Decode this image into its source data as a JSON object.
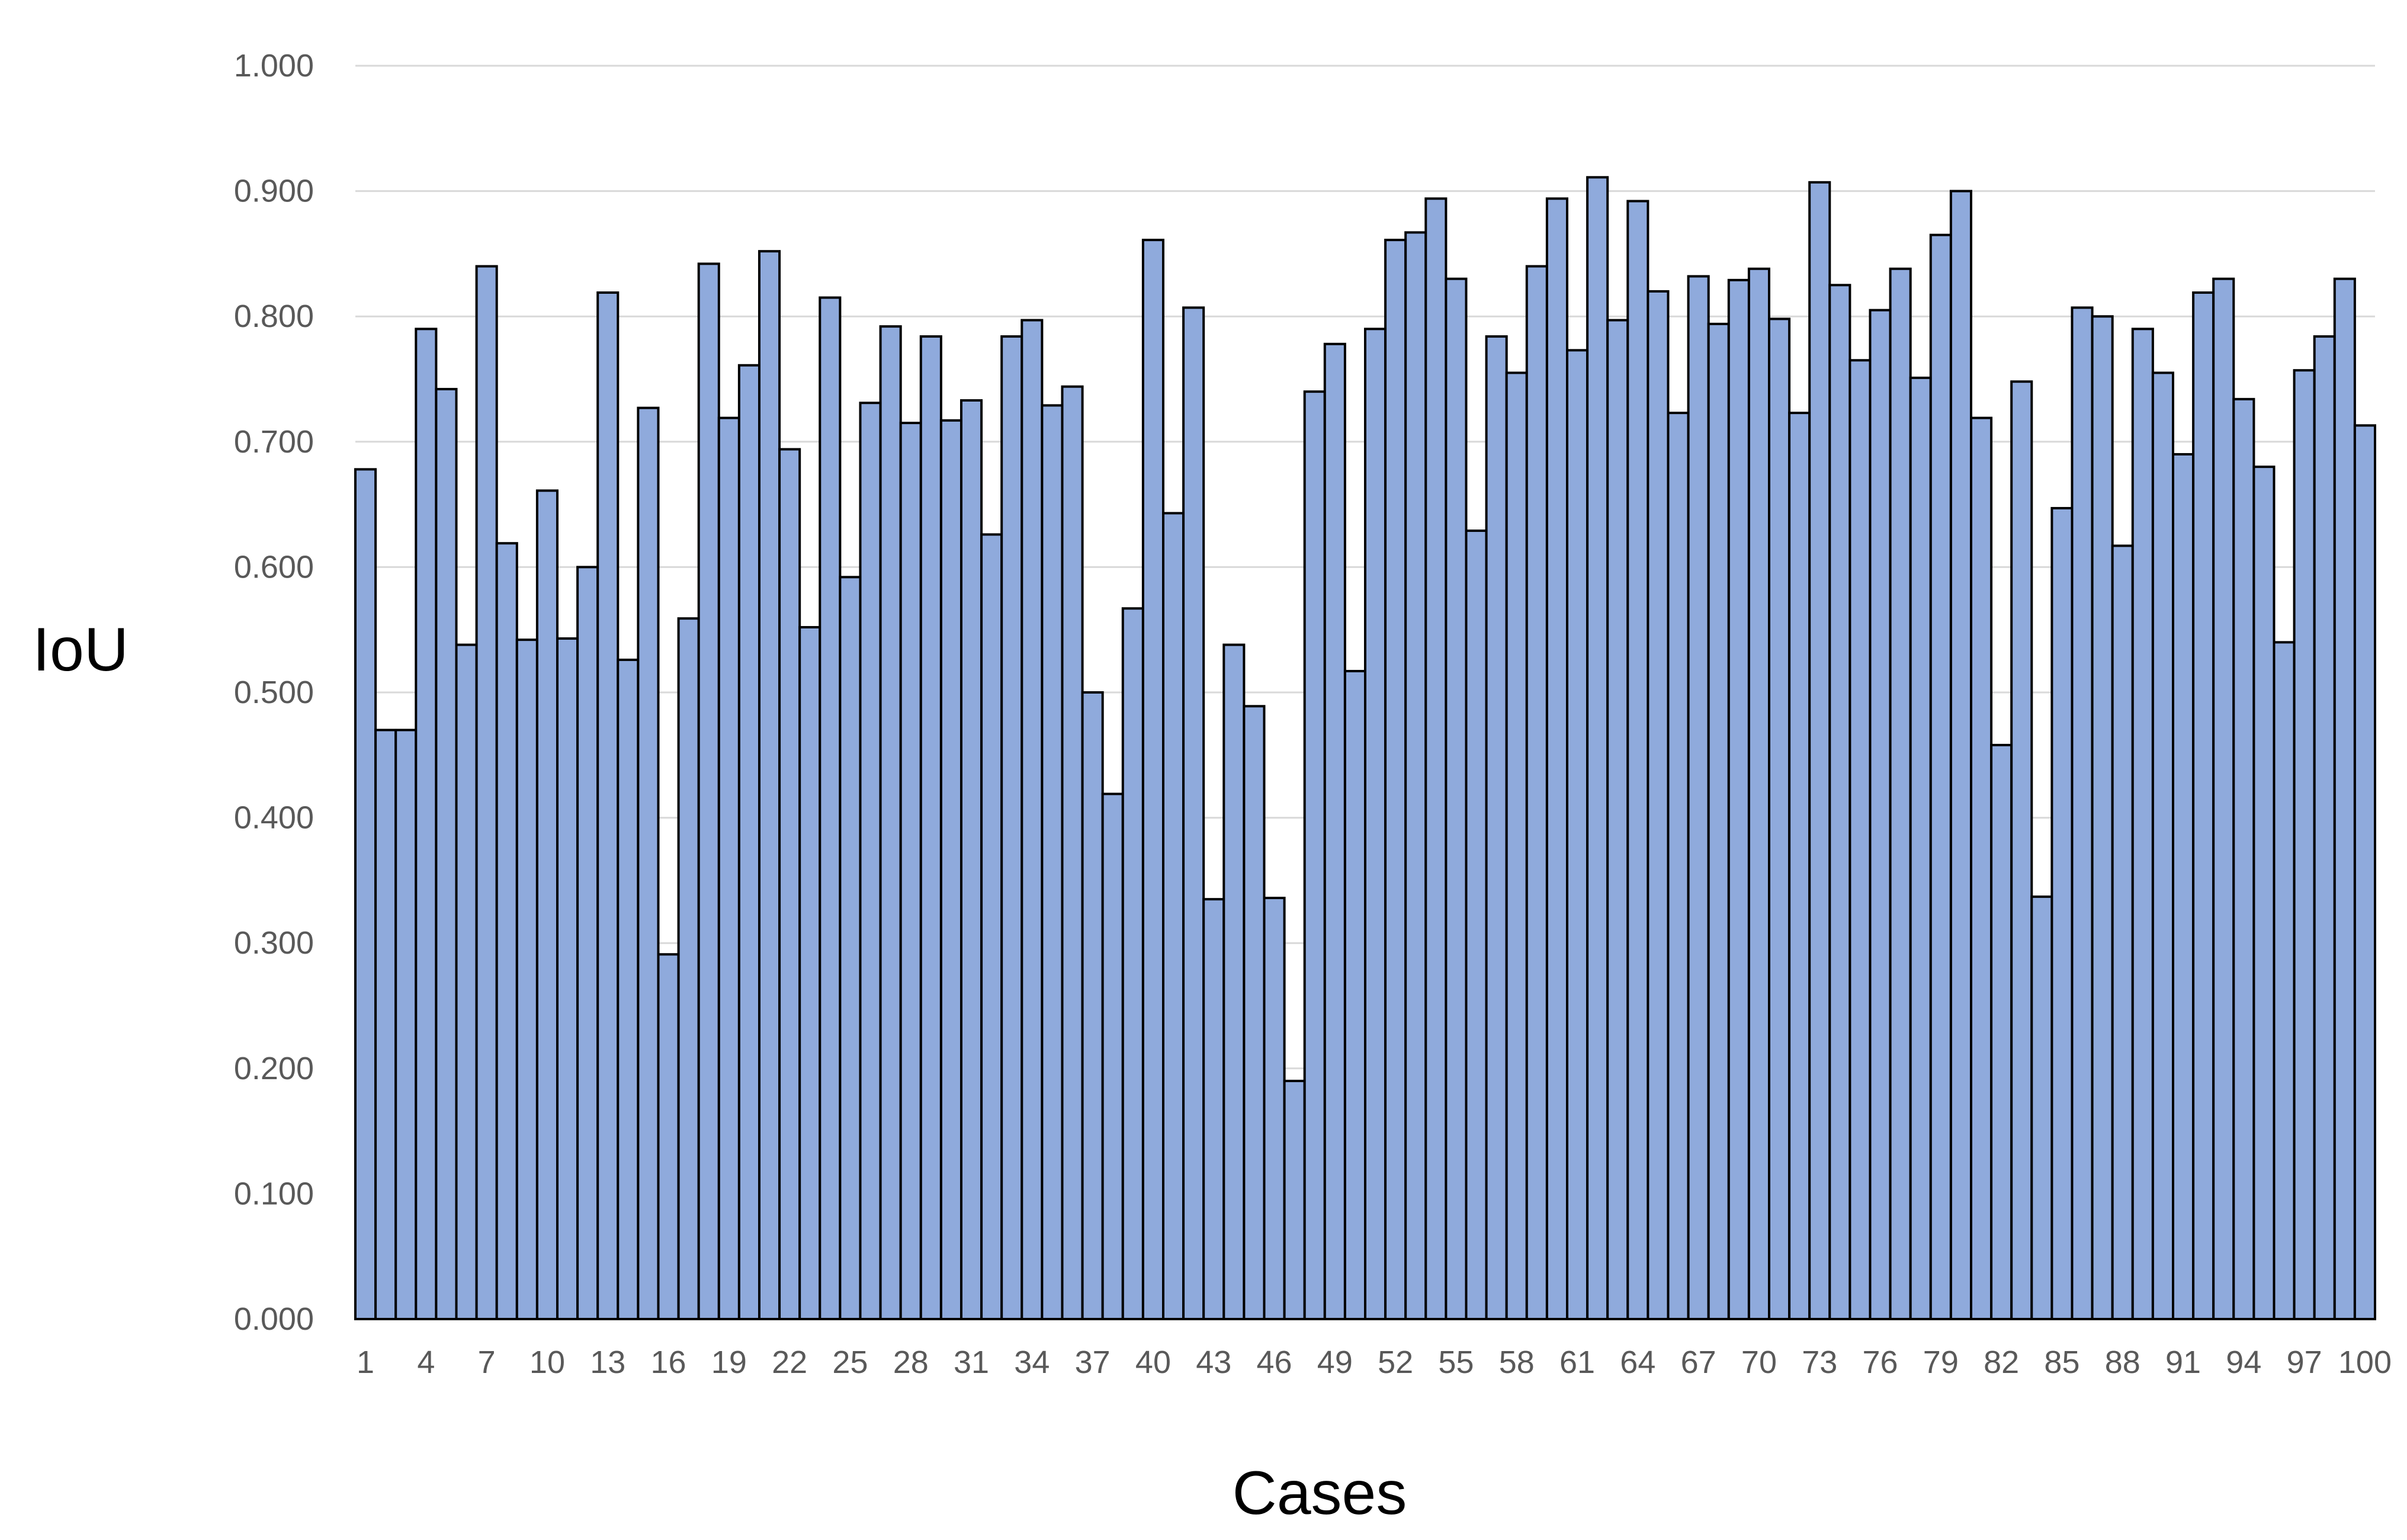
{
  "chart_data": {
    "type": "bar",
    "title": "",
    "xlabel": "Cases",
    "ylabel": "IoU",
    "ylim": [
      0,
      1
    ],
    "y_tick_values": [
      0,
      0.1,
      0.2,
      0.3,
      0.4,
      0.5,
      0.6,
      0.7,
      0.8,
      0.9,
      1.0
    ],
    "y_tick_labels": [
      "0.000",
      "0.100",
      "0.200",
      "0.300",
      "0.400",
      "0.500",
      "0.600",
      "0.700",
      "0.800",
      "0.900",
      "1.000"
    ],
    "x_tick_labels": [
      "1",
      "4",
      "7",
      "10",
      "13",
      "16",
      "19",
      "22",
      "25",
      "28",
      "31",
      "34",
      "37",
      "40",
      "43",
      "46",
      "49",
      "52",
      "55",
      "58",
      "61",
      "64",
      "67",
      "70",
      "73",
      "76",
      "79",
      "82",
      "85",
      "88",
      "91",
      "94",
      "97",
      "100"
    ],
    "grid": true,
    "legend": "none",
    "colors": {
      "bar_fill": "#8faadc",
      "bar_edge": "#000000",
      "grid": "#d9d9d9",
      "tick_text": "#595959",
      "title_text": "#000000"
    },
    "categories": [
      "1",
      "2",
      "3",
      "4",
      "5",
      "6",
      "7",
      "8",
      "9",
      "10",
      "11",
      "12",
      "13",
      "14",
      "15",
      "16",
      "17",
      "18",
      "19",
      "20",
      "21",
      "22",
      "23",
      "24",
      "25",
      "26",
      "27",
      "28",
      "29",
      "30",
      "31",
      "32",
      "33",
      "34",
      "35",
      "36",
      "37",
      "38",
      "39",
      "40",
      "41",
      "42",
      "43",
      "44",
      "45",
      "46",
      "47",
      "48",
      "49",
      "50",
      "51",
      "52",
      "53",
      "54",
      "55",
      "56",
      "57",
      "58",
      "59",
      "60",
      "61",
      "62",
      "63",
      "64",
      "65",
      "66",
      "67",
      "68",
      "69",
      "70",
      "71",
      "72",
      "73",
      "74",
      "75",
      "76",
      "77",
      "78",
      "79",
      "80",
      "81",
      "82",
      "83",
      "84",
      "85",
      "86",
      "87",
      "88",
      "89",
      "90",
      "91",
      "92",
      "93",
      "94",
      "95",
      "96",
      "97",
      "98",
      "99",
      "100"
    ],
    "values": [
      0.678,
      0.47,
      0.47,
      0.79,
      0.742,
      0.538,
      0.84,
      0.619,
      0.542,
      0.661,
      0.543,
      0.6,
      0.819,
      0.526,
      0.727,
      0.291,
      0.559,
      0.842,
      0.719,
      0.761,
      0.852,
      0.694,
      0.552,
      0.815,
      0.592,
      0.731,
      0.792,
      0.715,
      0.784,
      0.717,
      0.733,
      0.626,
      0.784,
      0.797,
      0.729,
      0.744,
      0.5,
      0.419,
      0.567,
      0.861,
      0.643,
      0.807,
      0.335,
      0.538,
      0.489,
      0.336,
      0.19,
      0.74,
      0.778,
      0.517,
      0.79,
      0.861,
      0.867,
      0.894,
      0.83,
      0.629,
      0.784,
      0.755,
      0.84,
      0.894,
      0.773,
      0.911,
      0.797,
      0.892,
      0.82,
      0.723,
      0.832,
      0.794,
      0.829,
      0.838,
      0.798,
      0.723,
      0.907,
      0.825,
      0.765,
      0.805,
      0.838,
      0.751,
      0.865,
      0.9,
      0.719,
      0.458,
      0.748,
      0.337,
      0.647,
      0.807,
      0.8,
      0.617,
      0.79,
      0.755,
      0.69,
      0.819,
      0.83,
      0.734,
      0.68,
      0.54,
      0.757,
      0.784,
      0.83,
      0.713
    ]
  }
}
